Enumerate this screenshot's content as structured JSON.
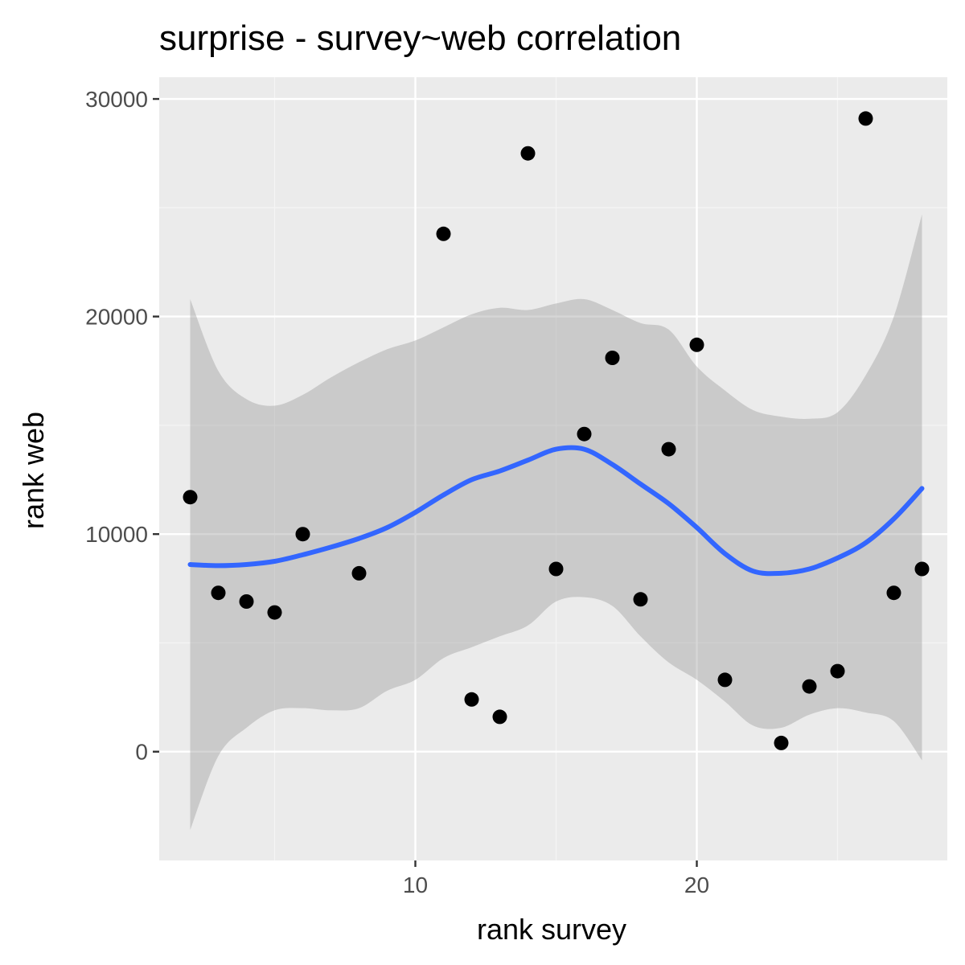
{
  "chart_data": {
    "type": "scatter",
    "title": "surprise - survey~web correlation",
    "xlabel": "rank survey",
    "ylabel": "rank web",
    "xlim": [
      0.9,
      28.9
    ],
    "ylim": [
      -5000,
      31000
    ],
    "x_ticks": [
      10,
      20
    ],
    "x_tick_labels": [
      "10",
      "20"
    ],
    "y_ticks": [
      0,
      10000,
      20000,
      30000
    ],
    "y_tick_labels": [
      "0",
      "10000",
      "20000",
      "30000"
    ],
    "grid": true,
    "legend": "none",
    "points": {
      "x": [
        2,
        3,
        4,
        5,
        6,
        8,
        11,
        12,
        13,
        14,
        15,
        16,
        17,
        18,
        19,
        20,
        21,
        23,
        24,
        25,
        26,
        27,
        28
      ],
      "y": [
        11700,
        7300,
        6900,
        6400,
        10000,
        8200,
        23800,
        2400,
        1600,
        27500,
        8400,
        14600,
        18100,
        7000,
        13900,
        18700,
        3300,
        400,
        3000,
        3700,
        29100,
        7300,
        8400
      ]
    },
    "smooth": {
      "method": "loess",
      "x": [
        2,
        3,
        4,
        5,
        6,
        7,
        8,
        9,
        10,
        11,
        12,
        13,
        14,
        15,
        16,
        17,
        18,
        19,
        20,
        21,
        22,
        23,
        24,
        25,
        26,
        27,
        28
      ],
      "y": [
        8600,
        8550,
        8600,
        8750,
        9050,
        9400,
        9800,
        10300,
        11000,
        11800,
        12500,
        12900,
        13400,
        13900,
        13900,
        13200,
        12300,
        11400,
        10300,
        9100,
        8300,
        8200,
        8400,
        8900,
        9600,
        10700,
        12100
      ],
      "ci_upper": [
        20800,
        17500,
        16200,
        15900,
        16400,
        17200,
        17900,
        18500,
        18900,
        19500,
        20100,
        20400,
        20300,
        20600,
        20800,
        20300,
        19700,
        19400,
        17700,
        16600,
        15700,
        15400,
        15300,
        15600,
        17300,
        20000,
        24700
      ],
      "ci_lower": [
        -3600,
        -200,
        1100,
        1900,
        2000,
        1900,
        2000,
        2800,
        3300,
        4300,
        4800,
        5300,
        5800,
        6900,
        7100,
        6700,
        5300,
        4100,
        3300,
        2300,
        1200,
        1100,
        1700,
        2000,
        1800,
        1400,
        -400
      ]
    },
    "colors": {
      "panel_background": "#ebebeb",
      "grid_major": "#ffffff",
      "grid_minor": "#f5f5f5",
      "points": "#000000",
      "smooth_line": "#3366ff",
      "ci_ribbon": "#999999",
      "tick_label": "#4d4d4d",
      "tick_mark": "#333333"
    }
  }
}
